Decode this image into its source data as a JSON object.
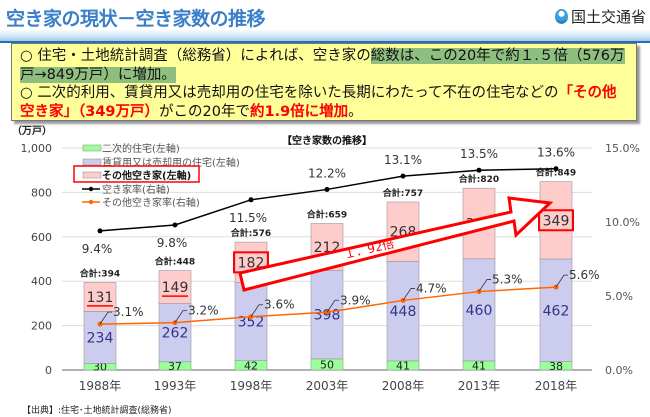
{
  "header": {
    "title": "空き家の現状－空き家数の推移",
    "org": "国土交通省"
  },
  "note": {
    "line1_pre": "○ 住宅・土地統計調査（総務省）によれば、空き家の",
    "line1_hl": "総数は、この20年で約１.５倍（576万戸→849万戸）に増加。",
    "line2_pre": "○ 二次的利用、賃貸用又は売却用の住宅を除いた長期にわたって不在の住宅などの",
    "line2_red1": "「その他空き家」（349万戸）",
    "line2_mid": "がこの20年で",
    "line2_red2": "約1.9倍に増加",
    "line2_end": "。"
  },
  "source": "【出典】:住宅･土地統計調査(総務省)",
  "chart_data": {
    "type": "bar",
    "title": "【空き家数の推移】",
    "ylabel": "（万戸）",
    "ylim": [
      0,
      1000
    ],
    "y_ticks": [
      "0",
      "200",
      "400",
      "600",
      "800",
      "1,000"
    ],
    "y2lim": [
      0,
      15
    ],
    "y2_ticks": [
      "0.0%",
      "5.0%",
      "10.0%",
      "15.0%"
    ],
    "categories": [
      "1988年",
      "1993年",
      "1998年",
      "2003年",
      "2008年",
      "2013年",
      "2018年"
    ],
    "series": [
      {
        "name": "二次的住宅(左軸)",
        "kind": "bar",
        "color": "#99ff99",
        "values": [
          30,
          37,
          42,
          50,
          41,
          41,
          38
        ]
      },
      {
        "name": "賃貸用又は売却用の住宅(左軸)",
        "kind": "bar",
        "color": "#ccccee",
        "values": [
          234,
          262,
          352,
          398,
          448,
          460,
          462
        ]
      },
      {
        "name": "その他空き家(左軸)",
        "kind": "bar",
        "color": "#ffcccc",
        "values": [
          131,
          149,
          182,
          212,
          268,
          318,
          349
        ]
      },
      {
        "name": "空き家率(右軸)",
        "kind": "line",
        "color": "#000000",
        "values": [
          9.4,
          9.8,
          11.5,
          12.2,
          13.1,
          13.5,
          13.6
        ],
        "labels": [
          "9.4%",
          "9.8%",
          "11.5%",
          "12.2%",
          "13.1%",
          "13.5%",
          "13.6%"
        ]
      },
      {
        "name": "その他空き家率(右軸)",
        "kind": "line",
        "color": "#ff6600",
        "values": [
          3.1,
          3.2,
          3.6,
          3.9,
          4.7,
          5.3,
          5.6
        ],
        "labels": [
          "3.1%",
          "3.2%",
          "3.6%",
          "3.9%",
          "4.7%",
          "5.3%",
          "5.6%"
        ]
      }
    ],
    "totals": [
      "合計:394",
      "合計:448",
      "合計:576",
      "合計:659",
      "合計:757",
      "合計:820",
      "合計:849"
    ],
    "annotation": "１．92倍",
    "legend_position": "top-left",
    "grid": true
  }
}
